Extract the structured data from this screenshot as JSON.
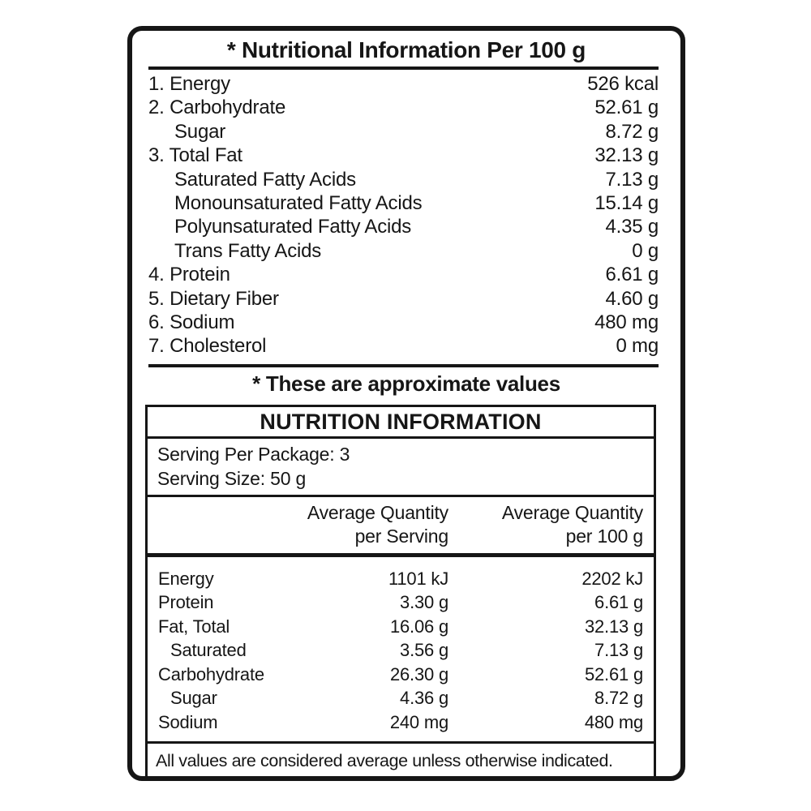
{
  "per100_panel": {
    "title": "* Nutritional Information Per 100 g",
    "rows": [
      {
        "label": "1. Energy",
        "value": "526 kcal"
      },
      {
        "label": "2. Carbohydrate",
        "value": "52.61 g"
      },
      {
        "label": "Sugar",
        "value": "8.72 g"
      },
      {
        "label": "3. Total Fat",
        "value": "32.13 g"
      },
      {
        "label": "Saturated Fatty Acids",
        "value": "7.13 g"
      },
      {
        "label": "Monounsaturated Fatty Acids",
        "value": "15.14 g"
      },
      {
        "label": "Polyunsaturated Fatty Acids",
        "value": "4.35 g"
      },
      {
        "label": "Trans Fatty Acids",
        "value": "0 g"
      },
      {
        "label": "4. Protein",
        "value": "6.61 g"
      },
      {
        "label": "5. Dietary Fiber",
        "value": "4.60 g"
      },
      {
        "label": "6. Sodium",
        "value": "480 mg"
      },
      {
        "label": "7. Cholesterol",
        "value": "0 mg"
      }
    ],
    "footnote": "* These are approximate values"
  },
  "nutrition_table": {
    "title": "NUTRITION INFORMATION",
    "serving_per_package": "Serving Per Package: 3",
    "serving_size": "Serving Size: 50 g",
    "columns": {
      "serving_line1": "Average Quantity",
      "serving_line2": "per Serving",
      "per100_line1": "Average Quantity",
      "per100_line2": "per 100 g"
    },
    "rows": [
      {
        "label": "Energy",
        "per_serving": "1101 kJ",
        "per_100g": "2202 kJ"
      },
      {
        "label": "Protein",
        "per_serving": "3.30 g",
        "per_100g": "6.61 g"
      },
      {
        "label": "Fat, Total",
        "per_serving": "16.06 g",
        "per_100g": "32.13 g"
      },
      {
        "label": "Saturated",
        "per_serving": "3.56 g",
        "per_100g": "7.13 g"
      },
      {
        "label": "Carbohydrate",
        "per_serving": "26.30 g",
        "per_100g": "52.61 g"
      },
      {
        "label": "Sugar",
        "per_serving": "4.36 g",
        "per_100g": "8.72 g"
      },
      {
        "label": "Sodium",
        "per_serving": "240 mg",
        "per_100g": "480 mg"
      }
    ],
    "footer": "All values are considered average unless otherwise indicated.",
    "colors": {
      "ink": "#161616",
      "background": "#ffffff"
    }
  }
}
